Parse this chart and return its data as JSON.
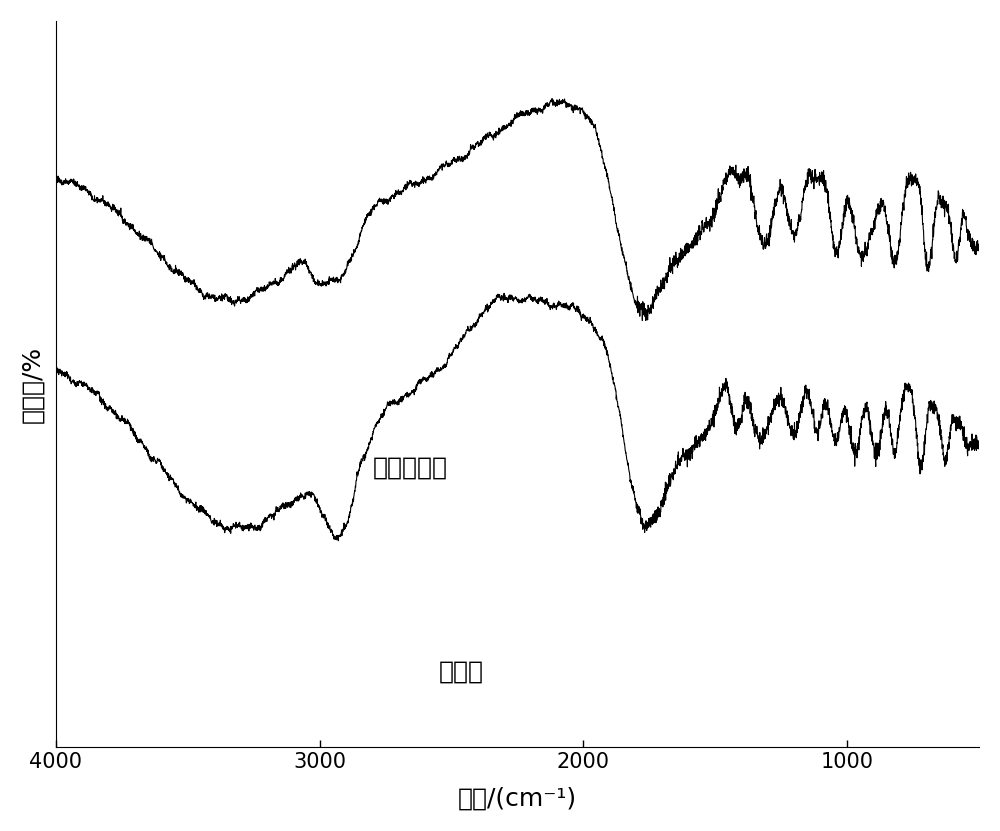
{
  "xlabel": "波长/(cm⁻¹)",
  "ylabel": "萍取率/%",
  "label_top": "固体萍取剂",
  "label_bottom": "聚噬吩",
  "line_color": "#000000",
  "bg_color": "#ffffff",
  "fontsize_axis_label": 18,
  "fontsize_tick": 15,
  "xticks": [
    4000,
    3000,
    2000,
    1000
  ]
}
